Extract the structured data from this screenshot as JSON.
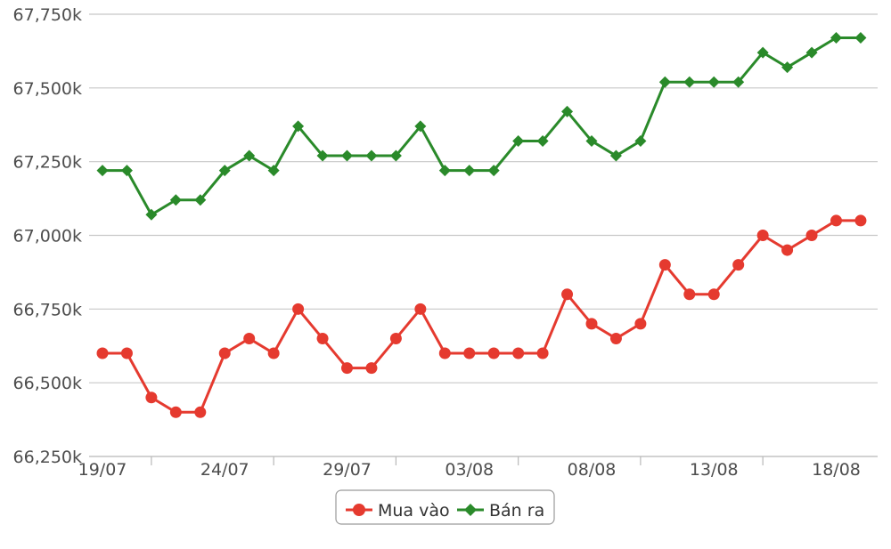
{
  "chart_data": {
    "type": "line",
    "x": [
      "19/07",
      "20/07",
      "21/07",
      "22/07",
      "23/07",
      "24/07",
      "25/07",
      "26/07",
      "27/07",
      "28/07",
      "29/07",
      "30/07",
      "31/07",
      "01/08",
      "02/08",
      "03/08",
      "04/08",
      "05/08",
      "06/08",
      "07/08",
      "08/08",
      "09/08",
      "10/08",
      "11/08",
      "12/08",
      "13/08",
      "14/08",
      "15/08",
      "16/08",
      "17/08",
      "18/08",
      "19/08"
    ],
    "xtick_labels": [
      "19/07",
      "24/07",
      "29/07",
      "03/08",
      "08/08",
      "13/08",
      "18/08"
    ],
    "ytick_labels": [
      "66,250k",
      "66,500k",
      "66,750k",
      "67,000k",
      "67,250k",
      "67,500k",
      "67,750k"
    ],
    "ytick_values": [
      66250,
      66500,
      66750,
      67000,
      67250,
      67500,
      67750
    ],
    "ylim": [
      66250,
      67750
    ],
    "grid": "horizontal",
    "legend_position": "bottom-center",
    "series": [
      {
        "name": "Mua vào",
        "color": "#e53a2f",
        "marker": "circle",
        "values": [
          66600,
          66600,
          66450,
          66400,
          66400,
          66600,
          66650,
          66600,
          66750,
          66650,
          66550,
          66550,
          66650,
          66750,
          66600,
          66600,
          66600,
          66600,
          66600,
          66800,
          66700,
          66650,
          66700,
          66900,
          66800,
          66800,
          66900,
          67000,
          66950,
          67000,
          67050,
          67050
        ]
      },
      {
        "name": "Bán ra",
        "color": "#2a8a2a",
        "marker": "diamond",
        "values": [
          67220,
          67220,
          67070,
          67120,
          67120,
          67220,
          67270,
          67220,
          67370,
          67270,
          67270,
          67270,
          67270,
          67370,
          67220,
          67220,
          67220,
          67320,
          67320,
          67420,
          67320,
          67270,
          67320,
          67520,
          67520,
          67520,
          67520,
          67620,
          67570,
          67620,
          67670,
          67670
        ]
      }
    ]
  }
}
